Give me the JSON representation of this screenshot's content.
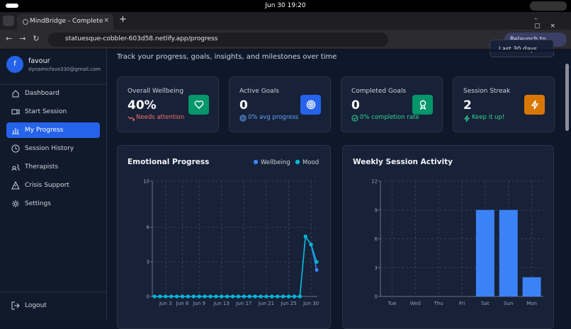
{
  "os_bar": {
    "clock": "Jun 30  19:20"
  },
  "browser": {
    "tab_title": "MindBridge - Complete",
    "url": "statuesque-cobbler-603d58.netlify.app/progress",
    "relaunch": "Relaunch to update"
  },
  "sidebar": {
    "avatar": "f",
    "name": "favour",
    "email": "dynamicfave330@gmail.com",
    "nav": [
      "Dashboard",
      "Start Session",
      "My Progress",
      "Session History",
      "Therapists",
      "Crisis Support",
      "Settings"
    ],
    "logout": "Logout"
  },
  "header": {
    "subtitle": "Track your progress, goals, insights, and milestones over time",
    "range": "Last 30 days"
  },
  "stats": [
    {
      "label": "Overall Wellbeing",
      "value": "40%",
      "note": "Needs attention"
    },
    {
      "label": "Active Goals",
      "value": "0",
      "note": "0% avg progress"
    },
    {
      "label": "Completed Goals",
      "value": "0",
      "note": "0% completion rate"
    },
    {
      "label": "Session Streak",
      "value": "2",
      "note": "Keep it up!"
    }
  ],
  "chart_data": [
    {
      "type": "line",
      "title": "Emotional Progress",
      "categories": [
        null,
        null,
        "Jun 3",
        null,
        null,
        "Jun 6",
        null,
        null,
        "Jun 9",
        null,
        null,
        null,
        "Jun 13",
        null,
        null,
        null,
        "Jun 17",
        null,
        null,
        null,
        "Jun 21",
        null,
        null,
        null,
        "Jun 25",
        null,
        null,
        null,
        "Jun 30",
        null
      ],
      "series": [
        {
          "name": "Wellbeing",
          "color": "#3b82f6",
          "values": [
            0,
            0,
            0,
            0,
            0,
            0,
            0,
            0,
            0,
            0,
            0,
            0,
            0,
            0,
            0,
            0,
            0,
            0,
            0,
            0,
            0,
            0,
            0,
            0,
            0,
            0,
            0,
            5.2,
            4.5,
            2.3
          ]
        },
        {
          "name": "Mood",
          "color": "#06b6d4",
          "values": [
            0,
            0,
            0,
            0,
            0,
            0,
            0,
            0,
            0,
            0,
            0,
            0,
            0,
            0,
            0,
            0,
            0,
            0,
            0,
            0,
            0,
            0,
            0,
            0,
            0,
            0,
            0,
            5.2,
            4.5,
            3
          ]
        }
      ],
      "ylim": [
        0,
        10
      ],
      "yticks": [
        0,
        3,
        6,
        10
      ],
      "grid": true,
      "legend": "top-right"
    },
    {
      "type": "bar",
      "title": "Weekly Session Activity",
      "categories": [
        "Tue",
        "Wed",
        "Thu",
        "Fri",
        "Sat",
        "Sun",
        "Mon"
      ],
      "values": [
        0,
        0,
        0,
        0,
        9,
        9,
        2
      ],
      "color": "#3b82f6",
      "ylim": [
        0,
        12
      ],
      "yticks": [
        0,
        3,
        6,
        9,
        12
      ],
      "grid": true
    }
  ]
}
